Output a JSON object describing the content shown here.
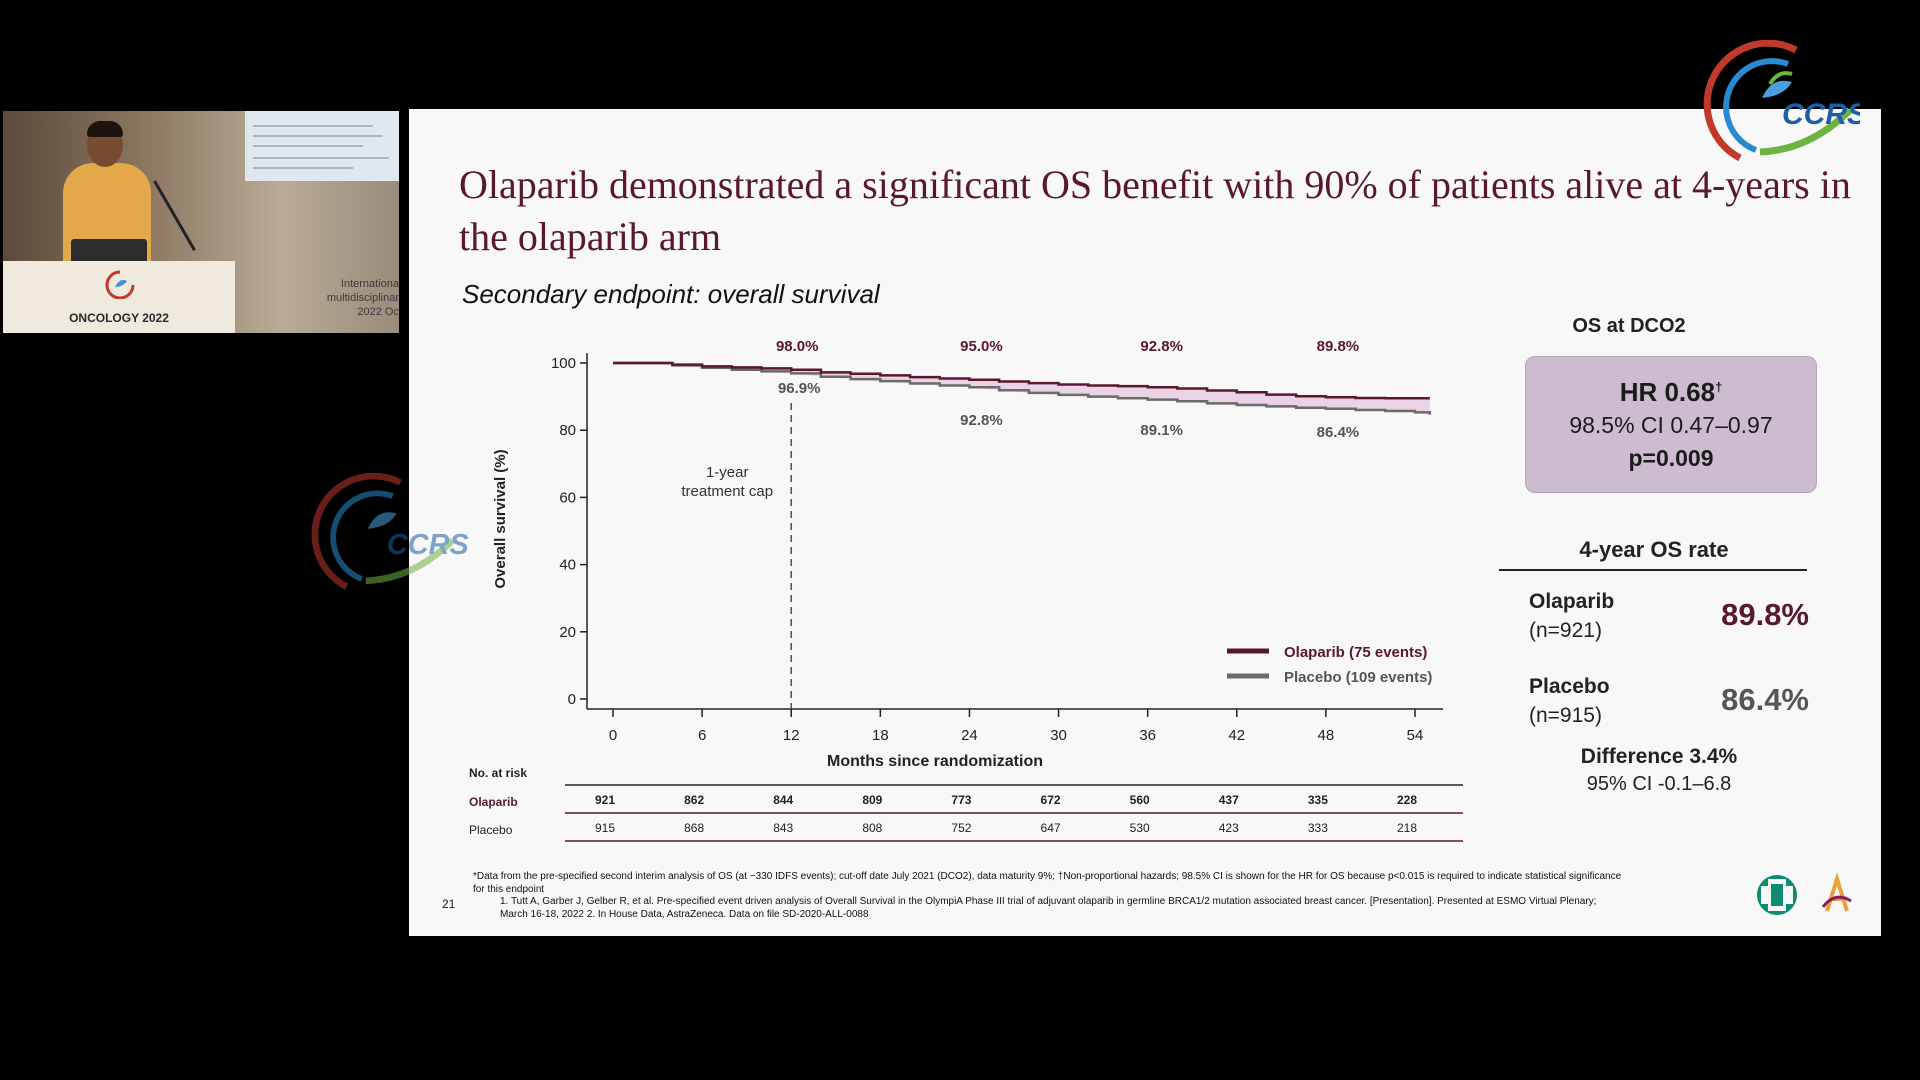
{
  "video": {
    "podium_text": "ONCOLOGY 2022",
    "screen_text": [
      "Internationa",
      "multidisciplinar",
      "2022 Oc"
    ]
  },
  "slide": {
    "title": "Olaparib demonstrated a significant OS benefit with 90% of patients alive at 4-years in the olaparib arm",
    "subtitle": "Secondary endpoint: overall survival",
    "page_number": "21",
    "footnotes": [
      "*Data from the pre-specified second interim analysis of OS (at ~330 IDFS events); cut-off date July 2021 (DCO2), data maturity 9%; †Non-proportional hazards; 98.5% CI is shown for the HR for OS because p<0.015 is required to indicate statistical significance for this endpoint",
      "1. Tutt A, Garber J, Gelber R, et al. Pre-specified event driven analysis of Overall Survival in the OlympiA Phase III trial of adjuvant olaparib in germline BRCA1/2 mutation associated breast cancer. [Presentation]. Presented at ESMO Virtual Plenary; March 16-18, 2022 2. In House Data, AstraZeneca. Data on file SD-2020-ALL-0088"
    ]
  },
  "summary": {
    "os_header": "OS at DCO2",
    "hr": "HR 0.68",
    "hr_mark": "†",
    "ci": "98.5% CI 0.47–0.97",
    "p_value": "p=0.009",
    "rate_header": "4-year OS rate",
    "olaparib_name": "Olaparib",
    "olaparib_n": "(n=921)",
    "olaparib_rate": "89.8%",
    "placebo_name": "Placebo",
    "placebo_n": "(n=915)",
    "placebo_rate": "86.4%",
    "difference": "Difference 3.4%",
    "difference_ci": "95% CI -0.1–6.8"
  },
  "colors": {
    "olaparib": "#5a1730",
    "placebo": "#6b6b6b",
    "fill": "#e8cde0",
    "title": "#5a1730",
    "hr_box": "#cdbcd0"
  },
  "chart_data": {
    "type": "line",
    "xlabel": "Months since randomization",
    "ylabel": "Overall survival (%)",
    "xlim": [
      0,
      54
    ],
    "ylim": [
      0,
      100
    ],
    "xticks": [
      0,
      6,
      12,
      18,
      24,
      30,
      36,
      42,
      48,
      54
    ],
    "yticks": [
      0,
      20,
      40,
      60,
      80,
      100
    ],
    "series": [
      {
        "name": "Olaparib (75 events)",
        "x": [
          0,
          2,
          4,
          6,
          8,
          10,
          12,
          14,
          16,
          18,
          20,
          22,
          24,
          26,
          28,
          30,
          32,
          34,
          36,
          38,
          40,
          42,
          44,
          46,
          48,
          50,
          52,
          54,
          55
        ],
        "values": [
          100,
          100,
          99.5,
          99.0,
          98.7,
          98.4,
          98.0,
          97.2,
          96.8,
          96.3,
          95.8,
          95.4,
          95.0,
          94.5,
          94.0,
          93.6,
          93.3,
          93.1,
          92.8,
          92.4,
          91.8,
          91.3,
          90.6,
          90.1,
          89.8,
          89.6,
          89.5,
          89.5,
          89.5
        ]
      },
      {
        "name": "Placebo (109 events)",
        "x": [
          0,
          2,
          4,
          6,
          8,
          10,
          12,
          14,
          16,
          18,
          20,
          22,
          24,
          26,
          28,
          30,
          32,
          34,
          36,
          38,
          40,
          42,
          44,
          46,
          48,
          50,
          52,
          54,
          55
        ],
        "values": [
          100,
          100,
          99.3,
          98.6,
          98.0,
          97.5,
          96.9,
          95.9,
          95.2,
          94.6,
          93.9,
          93.3,
          92.8,
          91.9,
          91.1,
          90.5,
          90.0,
          89.5,
          89.1,
          88.6,
          88.0,
          87.5,
          87.1,
          86.7,
          86.4,
          86.0,
          85.7,
          85.3,
          84.6
        ]
      }
    ],
    "annotations_olaparib": [
      {
        "x": 12,
        "label": "98.0%"
      },
      {
        "x": 24,
        "label": "95.0%"
      },
      {
        "x": 36,
        "label": "92.8%"
      },
      {
        "x": 48,
        "label": "89.8%"
      }
    ],
    "annotations_placebo": [
      {
        "x": 12,
        "label": "96.9%"
      },
      {
        "x": 24,
        "label": "92.8%"
      },
      {
        "x": 36,
        "label": "89.1%"
      },
      {
        "x": 48,
        "label": "86.4%"
      }
    ],
    "vline": {
      "x": 12,
      "label_line1": "1-year",
      "label_line2": "treatment cap"
    },
    "legend": "bottom-right",
    "risk_table": {
      "title": "No. at risk",
      "rows": [
        {
          "label": "Olaparib",
          "values": [
            921,
            862,
            844,
            809,
            773,
            672,
            560,
            437,
            335,
            228
          ]
        },
        {
          "label": "Placebo",
          "values": [
            915,
            868,
            843,
            808,
            752,
            647,
            530,
            423,
            333,
            218
          ]
        }
      ]
    }
  }
}
